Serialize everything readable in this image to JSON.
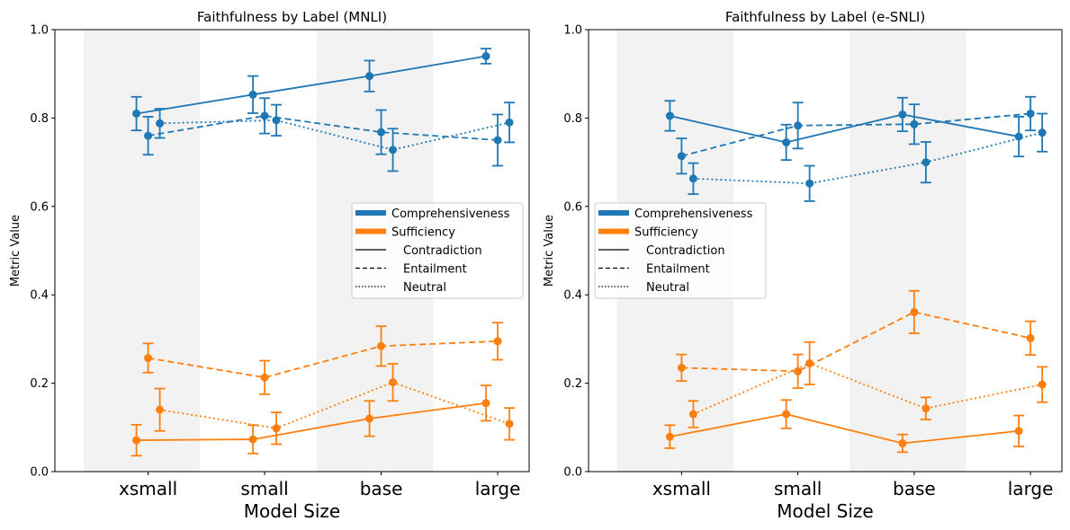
{
  "chart_data": [
    {
      "type": "line",
      "title": "Faithfulness by Label (MNLI)",
      "xlabel": "Model Size",
      "ylabel": "Metric Value",
      "ylim": [
        0,
        1
      ],
      "yticks": [
        "0.0",
        "0.2",
        "0.4",
        "0.6",
        "0.8",
        "1.0"
      ],
      "categories": [
        "xsmall",
        "small",
        "base",
        "large"
      ],
      "legend": {
        "placement": "center-right",
        "entries": [
          "Comprehensiveness",
          "Sufficiency",
          "Contradiction",
          "Entailment",
          "Neutral"
        ]
      },
      "series": [
        {
          "metric": "Comprehensiveness",
          "label": "Contradiction",
          "color": "#1f77b4",
          "dash": "solid",
          "values": [
            0.81,
            0.853,
            0.895,
            0.94
          ],
          "err": [
            0.038,
            0.042,
            0.035,
            0.017
          ]
        },
        {
          "metric": "Comprehensiveness",
          "label": "Entailment",
          "color": "#1f77b4",
          "dash": "dashed",
          "values": [
            0.76,
            0.805,
            0.768,
            0.75
          ],
          "err": [
            0.043,
            0.04,
            0.05,
            0.058
          ]
        },
        {
          "metric": "Comprehensiveness",
          "label": "Neutral",
          "color": "#1f77b4",
          "dash": "dotted",
          "values": [
            0.788,
            0.795,
            0.728,
            0.79
          ],
          "err": [
            0.033,
            0.035,
            0.048,
            0.045
          ]
        },
        {
          "metric": "Sufficiency",
          "label": "Contradiction",
          "color": "#ff7f0e",
          "dash": "solid",
          "values": [
            0.071,
            0.073,
            0.12,
            0.155
          ],
          "err": [
            0.035,
            0.032,
            0.04,
            0.04
          ]
        },
        {
          "metric": "Sufficiency",
          "label": "Entailment",
          "color": "#ff7f0e",
          "dash": "dashed",
          "values": [
            0.257,
            0.213,
            0.284,
            0.295
          ],
          "err": [
            0.033,
            0.038,
            0.045,
            0.042
          ]
        },
        {
          "metric": "Sufficiency",
          "label": "Neutral",
          "color": "#ff7f0e",
          "dash": "dotted",
          "values": [
            0.14,
            0.098,
            0.202,
            0.108
          ],
          "err": [
            0.048,
            0.036,
            0.042,
            0.036
          ]
        }
      ]
    },
    {
      "type": "line",
      "title": "Faithfulness by Label (e-SNLI)",
      "xlabel": "Model Size",
      "ylabel": "Metric Value",
      "ylim": [
        0,
        1
      ],
      "yticks": [
        "0.0",
        "0.2",
        "0.4",
        "0.6",
        "0.8",
        "1.0"
      ],
      "categories": [
        "xsmall",
        "small",
        "base",
        "large"
      ],
      "legend": {
        "placement": "center-left",
        "entries": [
          "Comprehensiveness",
          "Sufficiency",
          "Contradiction",
          "Entailment",
          "Neutral"
        ]
      },
      "series": [
        {
          "metric": "Comprehensiveness",
          "label": "Contradiction",
          "color": "#1f77b4",
          "dash": "solid",
          "values": [
            0.805,
            0.745,
            0.808,
            0.758
          ],
          "err": [
            0.034,
            0.04,
            0.038,
            0.045
          ]
        },
        {
          "metric": "Comprehensiveness",
          "label": "Entailment",
          "color": "#1f77b4",
          "dash": "dashed",
          "values": [
            0.714,
            0.783,
            0.786,
            0.81
          ],
          "err": [
            0.04,
            0.052,
            0.045,
            0.038
          ]
        },
        {
          "metric": "Comprehensiveness",
          "label": "Neutral",
          "color": "#1f77b4",
          "dash": "dotted",
          "values": [
            0.663,
            0.652,
            0.7,
            0.767
          ],
          "err": [
            0.035,
            0.04,
            0.046,
            0.043
          ]
        },
        {
          "metric": "Sufficiency",
          "label": "Contradiction",
          "color": "#ff7f0e",
          "dash": "solid",
          "values": [
            0.079,
            0.13,
            0.064,
            0.092
          ],
          "err": [
            0.026,
            0.032,
            0.02,
            0.035
          ]
        },
        {
          "metric": "Sufficiency",
          "label": "Entailment",
          "color": "#ff7f0e",
          "dash": "dashed",
          "values": [
            0.235,
            0.227,
            0.361,
            0.302
          ],
          "err": [
            0.03,
            0.038,
            0.048,
            0.038
          ]
        },
        {
          "metric": "Sufficiency",
          "label": "Neutral",
          "color": "#ff7f0e",
          "dash": "dotted",
          "values": [
            0.13,
            0.245,
            0.143,
            0.197
          ],
          "err": [
            0.03,
            0.048,
            0.025,
            0.04
          ]
        }
      ]
    }
  ]
}
